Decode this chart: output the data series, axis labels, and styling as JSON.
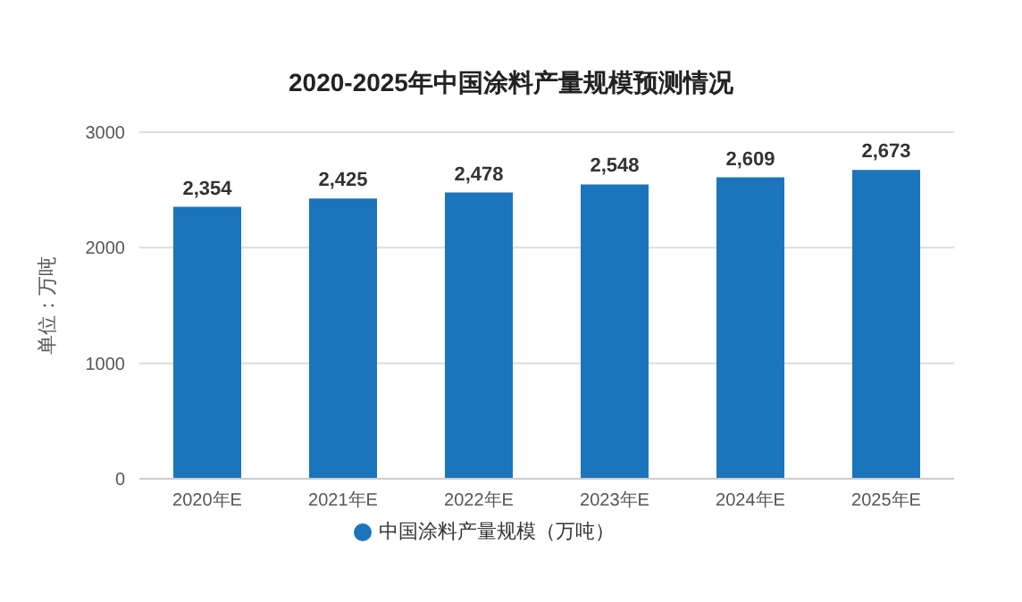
{
  "chart_data": {
    "type": "bar",
    "title": "2020-2025年中国涂料产量规模预测情况",
    "ylabel": "单位：万吨",
    "categories": [
      "2020年E",
      "2021年E",
      "2022年E",
      "2023年E",
      "2024年E",
      "2025年E"
    ],
    "series": [
      {
        "name": "中国涂料产量规模（万吨）",
        "color": "#1b75bc",
        "values": [
          2354,
          2425,
          2478,
          2548,
          2609,
          2673
        ],
        "value_labels": [
          "2,354",
          "2,425",
          "2,478",
          "2,548",
          "2,609",
          "2,673"
        ]
      }
    ],
    "ylim": [
      0,
      3000
    ],
    "yticks": [
      0,
      1000,
      2000,
      3000
    ],
    "grid": "y",
    "legend": "bottom"
  }
}
